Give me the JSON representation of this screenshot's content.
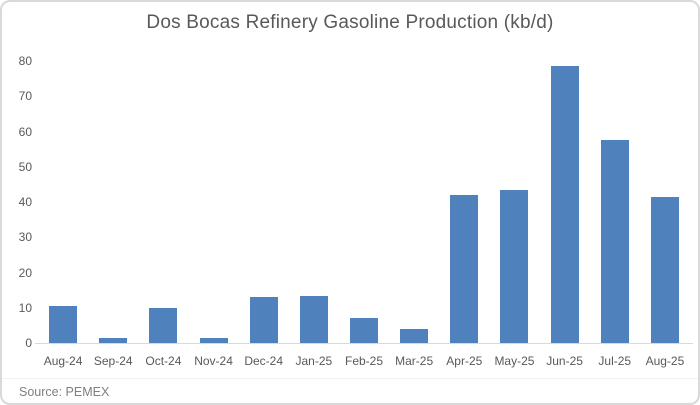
{
  "chart_data": {
    "type": "bar",
    "title": "Dos Bocas Refinery Gasoline Production (kb/d)",
    "categories": [
      "Aug-24",
      "Sep-24",
      "Oct-24",
      "Nov-24",
      "Dec-24",
      "Jan-25",
      "Feb-25",
      "Mar-25",
      "Apr-25",
      "May-25",
      "Jun-25",
      "Jul-25",
      "Aug-25"
    ],
    "values": [
      10.5,
      1.5,
      10,
      1.5,
      13,
      13.4,
      7.2,
      4,
      42,
      43.4,
      78.5,
      57.5,
      41.5
    ],
    "xlabel": "",
    "ylabel": "",
    "ylim": [
      0,
      80
    ],
    "yticks": [
      0,
      10,
      20,
      30,
      40,
      50,
      60,
      70,
      80
    ],
    "grid": false,
    "legend": "none",
    "bar_color": "#4F81BD"
  },
  "source_note": "Source: PEMEX",
  "colors": {
    "bar": "#4F81BD",
    "title_text": "#595959",
    "axis_label_text": "#595959",
    "axis_line": "#D9D9D9",
    "frame_border": "#D9D9D9",
    "source_text": "#808080",
    "background": "#FFFFFF"
  }
}
